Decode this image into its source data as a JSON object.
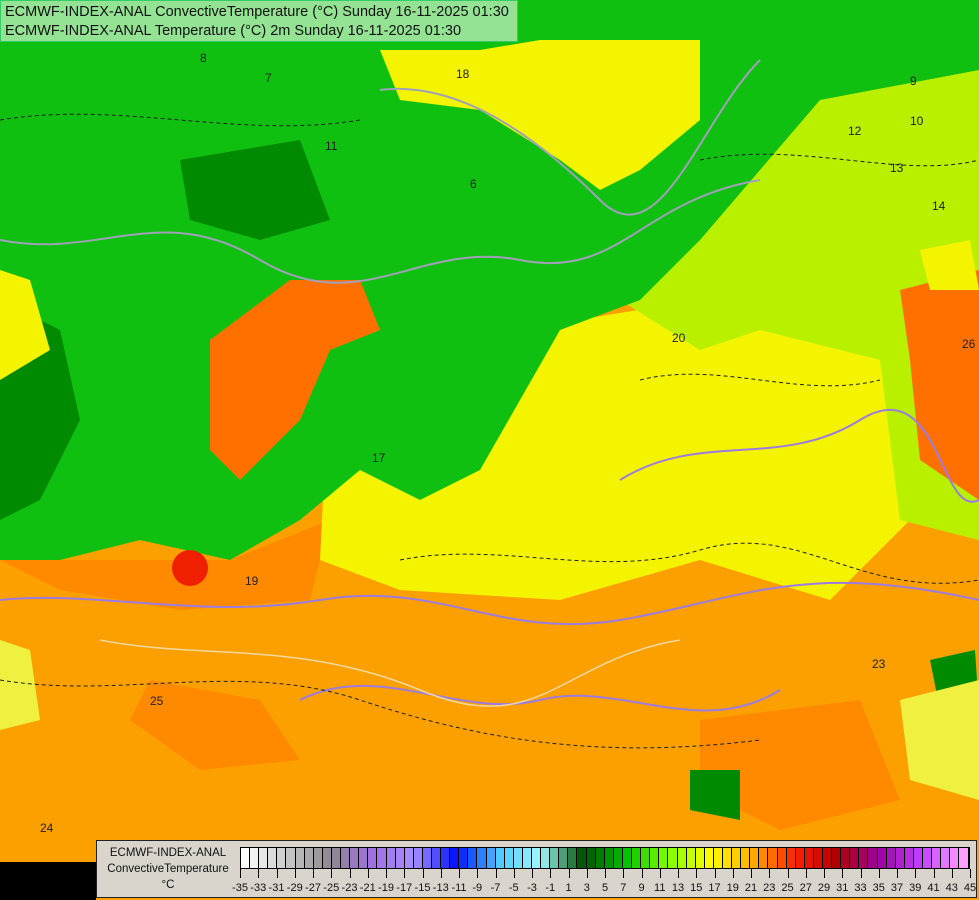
{
  "title": {
    "line1": "ECMWF-INDEX-ANAL ConvectiveTemperature (°C) Sunday 16-11-2025 01:30",
    "line2": "ECMWF-INDEX-ANAL Temperature (°C) 2m Sunday 16-11-2025 01:30"
  },
  "legend": {
    "line1": "ECMWF-INDEX-ANAL",
    "line2": "ConvectiveTemperature",
    "unit": "°C",
    "labels": [
      "-35",
      "-33",
      "-31",
      "-29",
      "-27",
      "-25",
      "-23",
      "-21",
      "-19",
      "-17",
      "-15",
      "-13",
      "-11",
      "-9",
      "-7",
      "-5",
      "-3",
      "-1",
      "1",
      "3",
      "5",
      "7",
      "9",
      "11",
      "13",
      "15",
      "17",
      "19",
      "21",
      "23",
      "25",
      "27",
      "29",
      "31",
      "33",
      "35",
      "37",
      "39",
      "41",
      "43",
      "45"
    ],
    "color_stops": [
      "#ffffff",
      "#c8c8c8",
      "#908890",
      "#a070e0",
      "#a890ff",
      "#0010ff",
      "#50c8ff",
      "#a0f8ff",
      "#005000",
      "#00c000",
      "#80ff00",
      "#ffff00",
      "#ffb000",
      "#ff2000",
      "#b00000",
      "#a000a0",
      "#c040ff",
      "#ffa0ff"
    ]
  },
  "map_colors": {
    "green_dark": "#008a00",
    "green": "#10c010",
    "green_bright": "#30d830",
    "lime": "#b8f000",
    "yellow": "#f4f400",
    "orange": "#fca000",
    "orange_dark": "#ff7000",
    "red": "#ee2000",
    "border_purple": "#9c7ce0",
    "border_grey": "#a0a0b8"
  },
  "contour_labels": [
    "18",
    "6",
    "7",
    "8",
    "9",
    "10",
    "12",
    "13",
    "14",
    "20",
    "19",
    "17",
    "11",
    "25",
    "24",
    "23",
    "26"
  ]
}
